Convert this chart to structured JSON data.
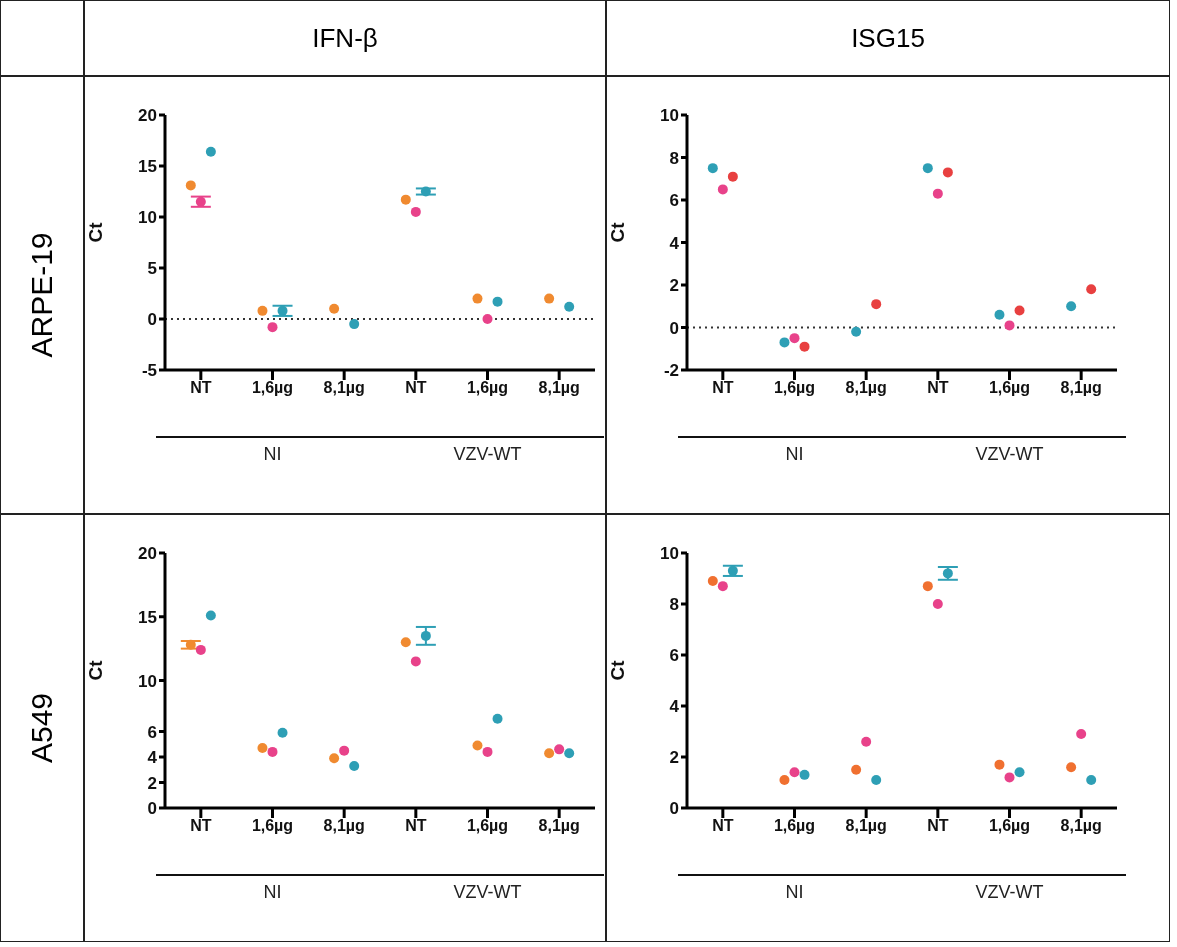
{
  "chart_data": [
    {
      "type": "scatter",
      "title": "IFN-β",
      "subtitle": "ARPE-19",
      "ylabel": "Ct",
      "categories": [
        "NT",
        "1,6µg",
        "8,1µg",
        "NT",
        "1,6µg",
        "8,1µg"
      ],
      "annotations": [
        "NI",
        "VZV-WT"
      ],
      "ylim": [
        -5,
        20
      ],
      "yticks": [
        -5,
        0,
        5,
        10,
        15,
        20
      ],
      "grid": false,
      "marker": "circle",
      "ref_lines": [
        {
          "axis": "y",
          "value": 0,
          "line_style": "dotted",
          "color": "#333333"
        }
      ],
      "series": [
        {
          "color": "#f08a30",
          "values": [
            13.1,
            0.8,
            1.0,
            11.7,
            2.0,
            2.0
          ]
        },
        {
          "color": "#e8428a",
          "values": [
            11.5,
            -0.8,
            null,
            10.5,
            0.0,
            null
          ],
          "errors": [
            0.5,
            null,
            null,
            null,
            null,
            null
          ]
        },
        {
          "color": "#2e9fb5",
          "values": [
            16.4,
            0.8,
            -0.5,
            12.5,
            1.7,
            1.2
          ],
          "errors": [
            null,
            0.5,
            null,
            0.3,
            null,
            null
          ]
        }
      ]
    },
    {
      "type": "scatter",
      "title": "ISG15",
      "ylabel": "Ct",
      "categories": [
        "NT",
        "1,6µg",
        "8,1µg",
        "NT",
        "1,6µg",
        "8,1µg"
      ],
      "annotations": [
        "NI",
        "VZV-WT"
      ],
      "ylim": [
        -2,
        10
      ],
      "yticks": [
        -2,
        0,
        2,
        4,
        6,
        8,
        10
      ],
      "grid": false,
      "marker": "circle",
      "ref_lines": [
        {
          "axis": "y",
          "value": 0,
          "line_style": "dotted",
          "color": "#333333"
        }
      ],
      "series": [
        {
          "color": "#2e9fb5",
          "values": [
            7.5,
            -0.7,
            -0.2,
            7.5,
            0.6,
            1.0
          ]
        },
        {
          "color": "#e8428a",
          "values": [
            6.5,
            -0.5,
            null,
            6.3,
            0.1,
            null
          ]
        },
        {
          "color": "#e84040",
          "values": [
            7.1,
            -0.9,
            1.1,
            7.3,
            0.8,
            1.8
          ]
        }
      ]
    },
    {
      "type": "scatter",
      "subtitle": "A549",
      "ylabel": "Ct",
      "categories": [
        "NT",
        "1,6µg",
        "8,1µg",
        "NT",
        "1,6µg",
        "8,1µg"
      ],
      "annotations": [
        "NI",
        "VZV-WT"
      ],
      "ylim": [
        0,
        20
      ],
      "yticks": [
        0,
        2,
        4,
        6,
        10,
        15,
        20
      ],
      "grid": false,
      "marker": "circle",
      "series": [
        {
          "color": "#f08a30",
          "values": [
            12.8,
            4.7,
            3.9,
            13.0,
            4.9,
            4.3
          ],
          "errors": [
            0.3,
            null,
            null,
            null,
            null,
            null
          ]
        },
        {
          "color": "#e8428a",
          "values": [
            12.4,
            4.4,
            4.5,
            11.5,
            4.4,
            4.6
          ]
        },
        {
          "color": "#2e9fb5",
          "values": [
            15.1,
            5.9,
            3.3,
            13.5,
            7.0,
            4.3
          ],
          "errors": [
            null,
            null,
            null,
            0.7,
            null,
            null
          ]
        }
      ]
    },
    {
      "type": "scatter",
      "ylabel": "Ct",
      "categories": [
        "NT",
        "1,6µg",
        "8,1µg",
        "NT",
        "1,6µg",
        "8,1µg"
      ],
      "annotations": [
        "NI",
        "VZV-WT"
      ],
      "ylim": [
        0,
        10
      ],
      "yticks": [
        0,
        2,
        4,
        6,
        8,
        10
      ],
      "grid": false,
      "marker": "circle",
      "series": [
        {
          "color": "#f07030",
          "values": [
            8.9,
            1.1,
            1.5,
            8.7,
            1.7,
            1.6
          ]
        },
        {
          "color": "#e8428a",
          "values": [
            8.7,
            1.4,
            2.6,
            8.0,
            1.2,
            2.9
          ]
        },
        {
          "color": "#2e9fb5",
          "values": [
            9.3,
            1.3,
            1.1,
            9.2,
            1.4,
            1.1
          ],
          "errors": [
            0.2,
            null,
            null,
            0.25,
            null,
            null
          ]
        }
      ]
    }
  ]
}
